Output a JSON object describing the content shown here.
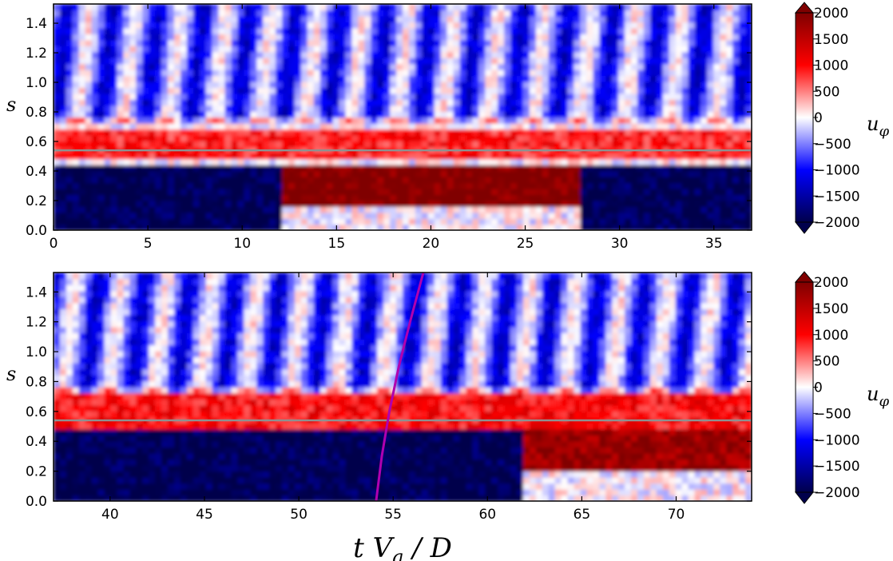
{
  "chart_data": [
    {
      "type": "heatmap",
      "title": "",
      "xlabel": "",
      "ylabel": "s",
      "xlim": [
        0,
        37
      ],
      "ylim": [
        0,
        1.53
      ],
      "xticks": [
        "0",
        "5",
        "10",
        "15",
        "20",
        "25",
        "30",
        "35"
      ],
      "yticks": [
        "0.0",
        "0.2",
        "0.4",
        "0.6",
        "0.8",
        "1.0",
        "1.2",
        "1.4"
      ],
      "reference_line_s": 0.54,
      "colorbar": {
        "label": "u_φ",
        "range": [
          -2000,
          2000
        ],
        "ticks": [
          "2000",
          "1500",
          "1000",
          "500",
          "0",
          "−500",
          "−1000",
          "−1500",
          "−2000"
        ],
        "colormap": "seismic",
        "colors": [
          "#00004c",
          "#0000ff",
          "#ffffff",
          "#ff0000",
          "#800000"
        ]
      },
      "regions": [
        {
          "name": "prograde band s~0.6",
          "t": [
            0,
            37
          ],
          "s": [
            0.5,
            0.7
          ],
          "u": 900
        },
        {
          "name": "retrograde core",
          "t": [
            0,
            12
          ],
          "s": [
            0,
            0.45
          ],
          "u": -2000
        },
        {
          "name": "prograde inner jet",
          "t": [
            12,
            28
          ],
          "s": [
            0.15,
            0.45
          ],
          "u": 2000
        },
        {
          "name": "retrograde core",
          "t": [
            28,
            37
          ],
          "s": [
            0,
            0.45
          ],
          "u": -2000
        },
        {
          "name": "outer retrograde streaks",
          "t": [
            0,
            37
          ],
          "s": [
            0.75,
            1.53
          ],
          "u": -600
        }
      ]
    },
    {
      "type": "heatmap",
      "title": "",
      "xlabel": "t V_a / D",
      "ylabel": "s",
      "xlim": [
        37,
        74
      ],
      "ylim": [
        0,
        1.53
      ],
      "xticks": [
        "40",
        "45",
        "50",
        "55",
        "60",
        "65",
        "70"
      ],
      "yticks": [
        "0.0",
        "0.2",
        "0.4",
        "0.6",
        "0.8",
        "1.0",
        "1.2",
        "1.4"
      ],
      "reference_line_s": 0.54,
      "colorbar": {
        "label": "u_φ",
        "range": [
          -2000,
          2000
        ],
        "ticks": [
          "2000",
          "1500",
          "1000",
          "500",
          "0",
          "−500",
          "−1000",
          "−1500",
          "−2000"
        ],
        "colormap": "seismic",
        "colors": [
          "#00004c",
          "#0000ff",
          "#ffffff",
          "#ff0000",
          "#800000"
        ]
      },
      "regions": [
        {
          "name": "prograde band s~0.6",
          "t": [
            37,
            74
          ],
          "s": [
            0.5,
            0.72
          ],
          "u": 1000
        },
        {
          "name": "retrograde core",
          "t": [
            37,
            62
          ],
          "s": [
            0,
            0.5
          ],
          "u": -2000
        },
        {
          "name": "prograde inner jet",
          "t": [
            62,
            74
          ],
          "s": [
            0.2,
            0.5
          ],
          "u": 1800
        },
        {
          "name": "outer retrograde streaks",
          "t": [
            37,
            74
          ],
          "s": [
            0.75,
            1.53
          ],
          "u": -600
        }
      ],
      "overlay_curve": {
        "color": "#b000b0",
        "points": [
          [
            54.1,
            0.0
          ],
          [
            54.4,
            0.3
          ],
          [
            54.8,
            0.6
          ],
          [
            55.3,
            0.9
          ],
          [
            55.9,
            1.2
          ],
          [
            56.6,
            1.53
          ]
        ]
      }
    }
  ]
}
